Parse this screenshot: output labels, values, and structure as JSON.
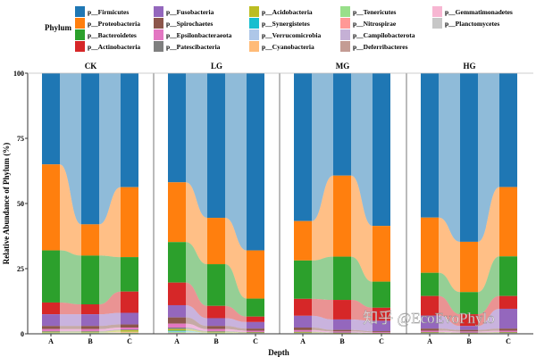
{
  "chart_data": {
    "type": "bar",
    "subtype": "stacked-alluvial",
    "ylabel": "Relative Abundance of Phylum (%)",
    "xlabel": "Depth",
    "ylim": [
      0,
      100
    ],
    "yticks": [
      0,
      25,
      50,
      75,
      100
    ],
    "legend_title": "Phylum",
    "legend_position": "top",
    "groups": [
      "CK",
      "LG",
      "MG",
      "HG"
    ],
    "categories": [
      "A",
      "B",
      "C"
    ],
    "series": [
      {
        "name": "p__Firmicutes",
        "color": "#1f77b4",
        "values": [
          [
            35,
            58,
            44
          ],
          [
            42,
            55.5,
            68
          ],
          [
            56.7,
            39.3,
            58.6
          ],
          [
            55.4,
            64.7,
            43.7
          ]
        ]
      },
      {
        "name": "p__Proteobacteria",
        "color": "#ff7f0e",
        "values": [
          [
            33,
            12,
            27
          ],
          [
            23,
            17.8,
            18.5
          ],
          [
            15.1,
            31.1,
            21.4
          ],
          [
            21.2,
            19.3,
            26.6
          ]
        ]
      },
      {
        "name": "p__Bacteroidetes",
        "color": "#2ca02c",
        "values": [
          [
            20,
            18.7,
            13.3
          ],
          [
            15.6,
            16,
            6.9
          ],
          [
            14.7,
            16.6,
            10
          ],
          [
            8.9,
            8.5,
            15.2
          ]
        ]
      },
      {
        "name": "p__Actinobacteria",
        "color": "#d62728",
        "values": [
          [
            4.5,
            3.8,
            8.2
          ],
          [
            8.7,
            4.7,
            2.1
          ],
          [
            6.5,
            7.5,
            5
          ],
          [
            7.5,
            4.5,
            4.9
          ]
        ]
      },
      {
        "name": "p__Fusobacteria",
        "color": "#9467bd",
        "values": [
          [
            4.5,
            4.5,
            4.5
          ],
          [
            4.7,
            3,
            2.5
          ],
          [
            4.5,
            4,
            4
          ],
          [
            5,
            1.5,
            7.6
          ]
        ]
      },
      {
        "name": "p__Spirochaetes",
        "color": "#8c564b",
        "values": [
          [
            1.2,
            1.2,
            1.2
          ],
          [
            2.4,
            1.2,
            0.8
          ],
          [
            1,
            0.6,
            0.4
          ],
          [
            0.8,
            0.6,
            0.8
          ]
        ]
      },
      {
        "name": "p__Epsilonbacteraeota",
        "color": "#e377c2",
        "values": [
          [
            0.75,
            0.75,
            0.75
          ],
          [
            1.5,
            0.75,
            0.5
          ],
          [
            0.6,
            0.4,
            0.25
          ],
          [
            0.5,
            0.4,
            0.5
          ]
        ]
      },
      {
        "name": "p__Patescibacteria",
        "color": "#7f7f7f",
        "values": [
          [
            0.3,
            0.3,
            0.3
          ],
          [
            0.6,
            0.3,
            0.2
          ],
          [
            0.25,
            0.15,
            0.1
          ],
          [
            0.2,
            0.15,
            0.2
          ]
        ]
      },
      {
        "name": "p__Acidobacteria",
        "color": "#bcbd22",
        "values": [
          [
            0.3,
            0.3,
            0.6
          ],
          [
            0.6,
            0.3,
            0.2
          ],
          [
            0.25,
            0.15,
            0.1
          ],
          [
            0.2,
            0.15,
            0.2
          ]
        ]
      },
      {
        "name": "p__Synergistetes",
        "color": "#17becf",
        "values": [
          [
            0,
            0,
            0
          ],
          [
            0.3,
            0,
            0
          ],
          [
            0,
            0,
            0
          ],
          [
            0,
            0,
            0
          ]
        ]
      },
      {
        "name": "p__Verrucomicrobia",
        "color": "#aec7e8",
        "values": [
          [
            0.15,
            0.15,
            0.15
          ],
          [
            0.3,
            0.15,
            0.1
          ],
          [
            0.1,
            0.05,
            0.05
          ],
          [
            0.1,
            0.05,
            0.1
          ]
        ]
      },
      {
        "name": "p__Cyanobacteria",
        "color": "#ffbb78",
        "values": [
          [
            0,
            0,
            0.3
          ],
          [
            0,
            0,
            0
          ],
          [
            0,
            0,
            0
          ],
          [
            0,
            0,
            0
          ]
        ]
      },
      {
        "name": "p__Tenericutes",
        "color": "#98df8a",
        "values": [
          [
            0.15,
            0.15,
            0.15
          ],
          [
            0.3,
            0.15,
            0.1
          ],
          [
            0.1,
            0.1,
            0.05
          ],
          [
            0.1,
            0.1,
            0.1
          ]
        ]
      },
      {
        "name": "p__Nitrospirae",
        "color": "#ff9896",
        "values": [
          [
            0,
            0,
            0
          ],
          [
            0,
            0,
            0
          ],
          [
            0,
            0,
            0
          ],
          [
            0,
            0,
            0
          ]
        ]
      },
      {
        "name": "p__Campilobacterota",
        "color": "#c5b0d5",
        "values": [
          [
            0,
            0,
            0
          ],
          [
            0,
            0,
            0
          ],
          [
            0,
            0,
            0
          ],
          [
            0,
            0,
            0
          ]
        ]
      },
      {
        "name": "p__Deferribacteres",
        "color": "#c49c94",
        "values": [
          [
            0,
            0,
            0
          ],
          [
            0,
            0,
            0
          ],
          [
            0,
            0,
            0
          ],
          [
            0,
            0,
            0
          ]
        ]
      },
      {
        "name": "p__Gemmatimonadetes",
        "color": "#f7b6d2",
        "values": [
          [
            0.15,
            0.15,
            0.15
          ],
          [
            0.3,
            0.15,
            0.1
          ],
          [
            0.1,
            0.05,
            0.05
          ],
          [
            0.1,
            0.05,
            0.1
          ]
        ]
      },
      {
        "name": "p__Planctomycetes",
        "color": "#c7c7c7",
        "values": [
          [
            0,
            0,
            0
          ],
          [
            0,
            0,
            0
          ],
          [
            0,
            0,
            0
          ],
          [
            0,
            0,
            0
          ]
        ]
      }
    ]
  },
  "watermark": "知乎 @EcoEvoPhylo"
}
